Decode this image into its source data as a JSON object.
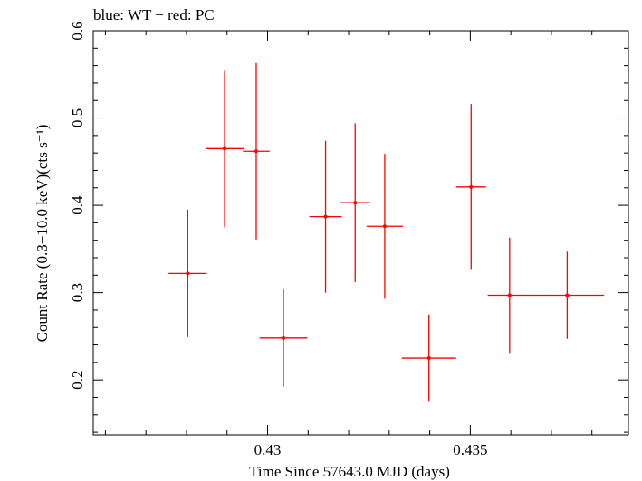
{
  "chart_data": {
    "type": "scatter",
    "title": "blue: WT − red: PC",
    "xlabel": "Time Since 57643.0 MJD (days)",
    "ylabel": "Count Rate (0.3−10.0 keV)(cts s⁻¹)",
    "xlim": [
      0.4257,
      0.4389
    ],
    "ylim": [
      0.137,
      0.6
    ],
    "xticks": [
      0.43,
      0.435
    ],
    "xtick_labels": [
      "0.43",
      "0.435"
    ],
    "yticks": [
      0.2,
      0.3,
      0.4,
      0.5,
      0.6
    ],
    "ytick_labels": [
      "0.2",
      "0.3",
      "0.4",
      "0.5",
      "0.6"
    ],
    "grid": false,
    "series": [
      {
        "color": "#ff0000",
        "points": [
          {
            "x": 0.42803,
            "xerr": 0.00047,
            "y": 0.322,
            "yerr_low": 0.073,
            "yerr_high": 0.073
          },
          {
            "x": 0.42894,
            "xerr": 0.00047,
            "y": 0.465,
            "yerr_low": 0.09,
            "yerr_high": 0.09
          },
          {
            "x": 0.42972,
            "xerr": 0.00033,
            "y": 0.462,
            "yerr_low": 0.101,
            "yerr_high": 0.101
          },
          {
            "x": 0.43039,
            "xerr": 0.00059,
            "y": 0.248,
            "yerr_low": 0.056,
            "yerr_high": 0.056
          },
          {
            "x": 0.43143,
            "xerr": 0.0004,
            "y": 0.387,
            "yerr_low": 0.087,
            "yerr_high": 0.087
          },
          {
            "x": 0.43216,
            "xerr": 0.00037,
            "y": 0.403,
            "yerr_low": 0.091,
            "yerr_high": 0.091
          },
          {
            "x": 0.43289,
            "xerr": 0.00045,
            "y": 0.376,
            "yerr_low": 0.083,
            "yerr_high": 0.083
          },
          {
            "x": 0.43398,
            "xerr": 0.00067,
            "y": 0.225,
            "yerr_low": 0.05,
            "yerr_high": 0.05
          },
          {
            "x": 0.43502,
            "xerr": 0.00037,
            "y": 0.421,
            "yerr_low": 0.095,
            "yerr_high": 0.095
          },
          {
            "x": 0.43597,
            "xerr": 0.00054,
            "y": 0.297,
            "yerr_low": 0.066,
            "yerr_high": 0.066
          },
          {
            "x": 0.43739,
            "xerr": 0.00091,
            "y": 0.297,
            "yerr_low": 0.05,
            "yerr_high": 0.05
          }
        ]
      }
    ]
  }
}
